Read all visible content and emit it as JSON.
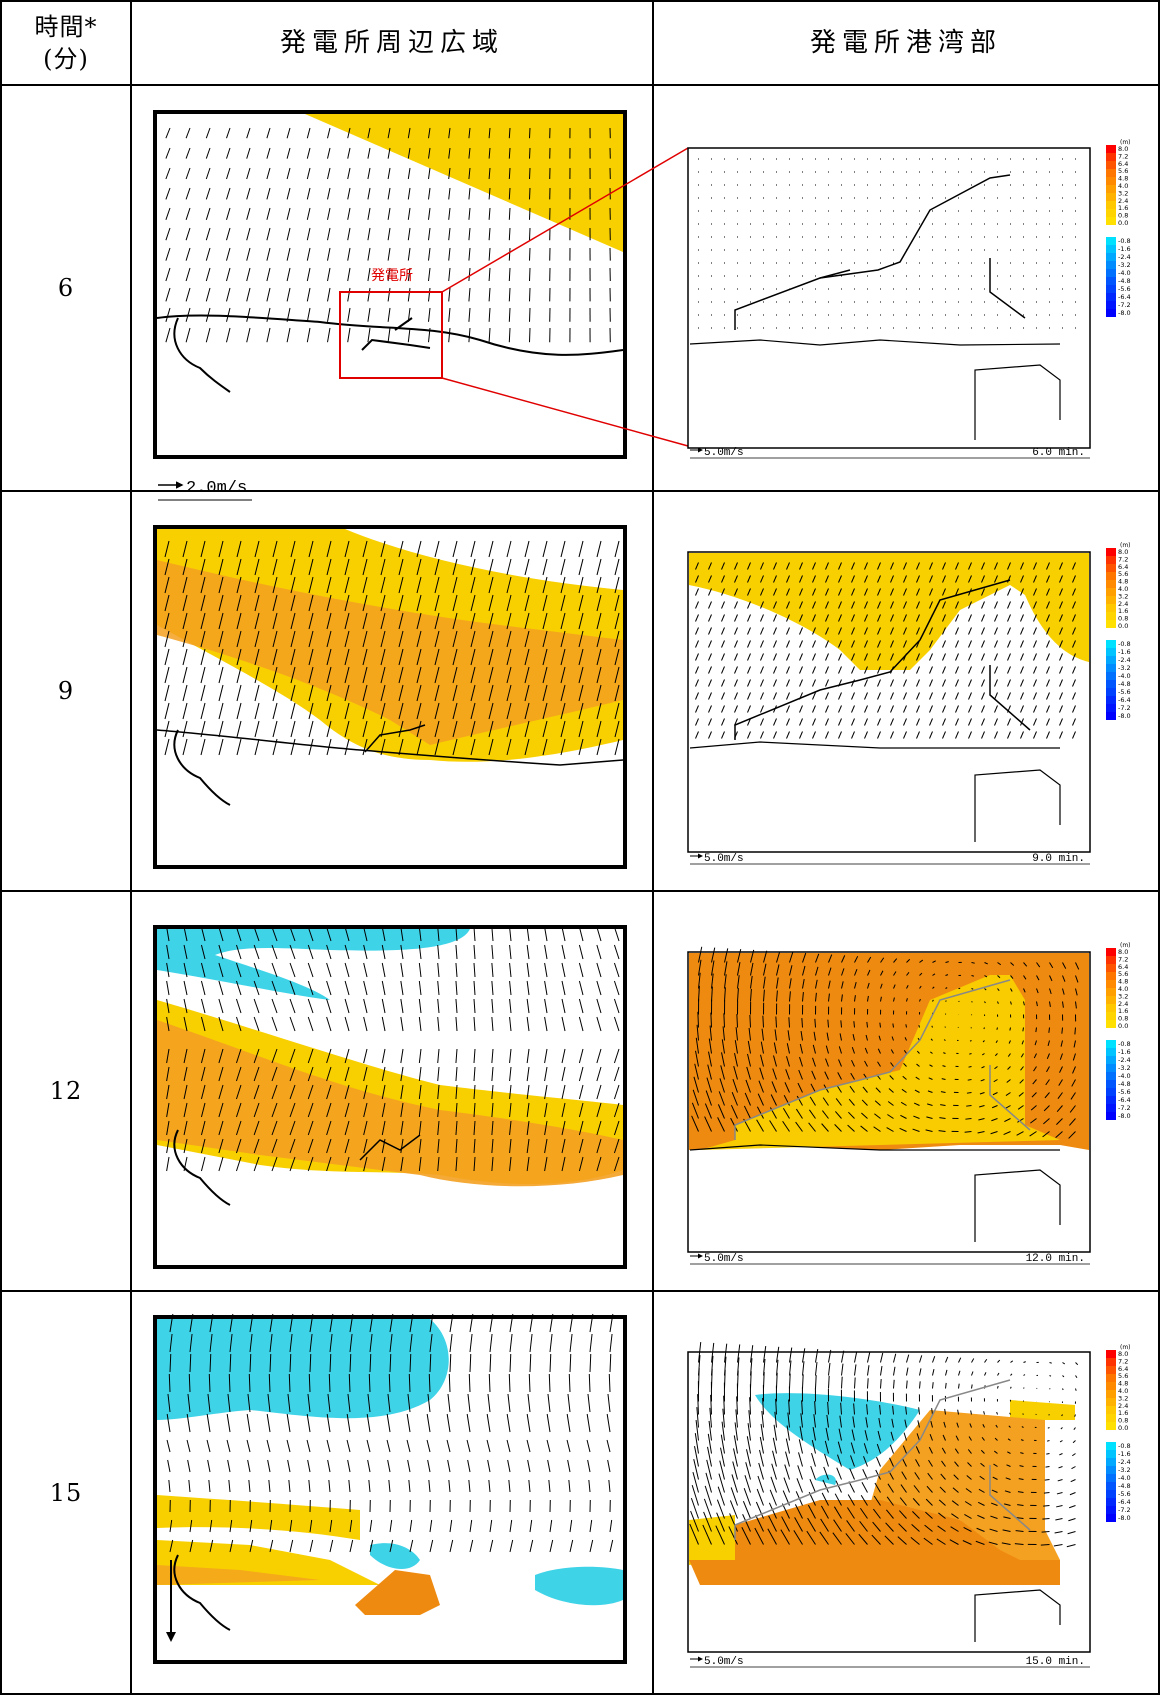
{
  "header": {
    "time_label_line1": "時間*",
    "time_label_line2": "(分)",
    "col_wide": "発電所周辺広域",
    "col_harbor": "発電所港湾部"
  },
  "rows": [
    {
      "time": "6",
      "minutes_label": "6.0 min."
    },
    {
      "time": "9",
      "minutes_label": "9.0 min."
    },
    {
      "time": "12",
      "minutes_label": "12.0 min."
    },
    {
      "time": "15",
      "minutes_label": "15.0 min."
    }
  ],
  "wide_scale_label": "2.0m/s",
  "harbor_scale_label": "5.0m/s",
  "plant_label": "発電所",
  "legend": {
    "unit": "(m)",
    "positive": [
      "8.0",
      "7.2",
      "6.4",
      "5.6",
      "4.8",
      "4.0",
      "3.2",
      "2.4",
      "1.6",
      "0.8",
      "0.0"
    ],
    "negative": [
      "-0.8",
      "-1.6",
      "-2.4",
      "-3.2",
      "-4.0",
      "-4.8",
      "-5.6",
      "-6.4",
      "-7.2",
      "-8.0"
    ],
    "colors_positive": [
      "#ff0000",
      "#ff3300",
      "#ff5500",
      "#ff7700",
      "#ff8a00",
      "#ffa000",
      "#ffb300",
      "#ffc800",
      "#ffd400",
      "#ffe000"
    ],
    "colors_negative": [
      "#00e0ff",
      "#00c4ff",
      "#00a8ff",
      "#008cff",
      "#0070ff",
      "#0055ff",
      "#0040ff",
      "#0028ff",
      "#0014ff",
      "#0000ff"
    ]
  },
  "fill_colors": {
    "yellow": "#f8d000",
    "orange": "#f4a020",
    "deep_orange": "#ef8a10",
    "cyan": "#3fd3e8"
  }
}
